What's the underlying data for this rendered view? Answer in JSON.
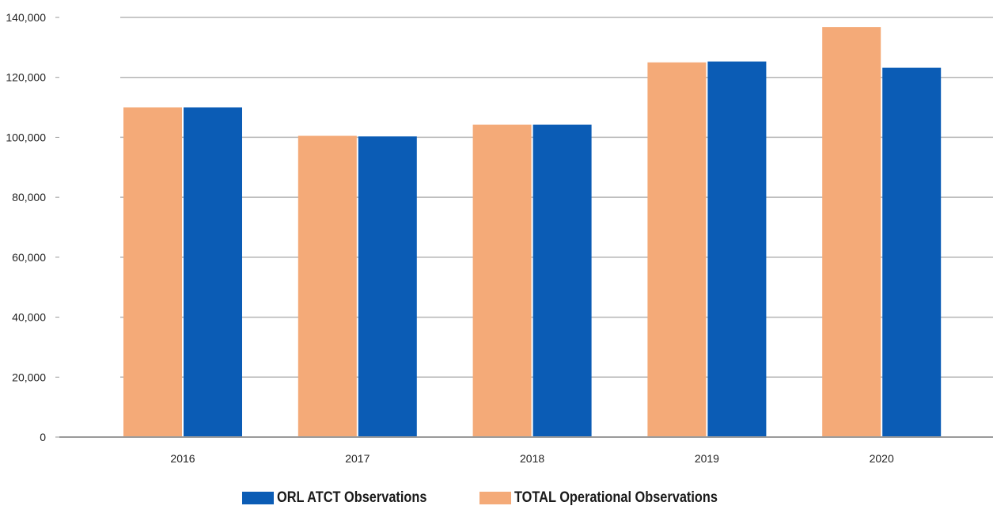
{
  "chart_data": {
    "type": "bar",
    "title": "",
    "xlabel": "",
    "ylabel": "",
    "categories": [
      "2016",
      "2017",
      "2018",
      "2019",
      "2020"
    ],
    "series": [
      {
        "name": "TOTAL Operational Observations",
        "color": "#f4aa78",
        "values": [
          110000,
          100500,
          104200,
          125000,
          136800
        ]
      },
      {
        "name": "ORL ATCT Observations",
        "color": "#0b5cb5",
        "values": [
          110000,
          100300,
          104200,
          125300,
          123200
        ]
      }
    ],
    "ylim": [
      0,
      140000
    ],
    "yticks": [
      0,
      20000,
      40000,
      60000,
      80000,
      100000,
      120000,
      140000
    ],
    "ytick_labels": [
      "0",
      "20,000",
      "40,000",
      "60,000",
      "80,000",
      "100,000",
      "120,000",
      "140,000"
    ],
    "grid": true,
    "legend": {
      "placement": "bottom-center",
      "order": [
        "ORL ATCT Observations",
        "TOTAL Operational Observations"
      ]
    }
  }
}
